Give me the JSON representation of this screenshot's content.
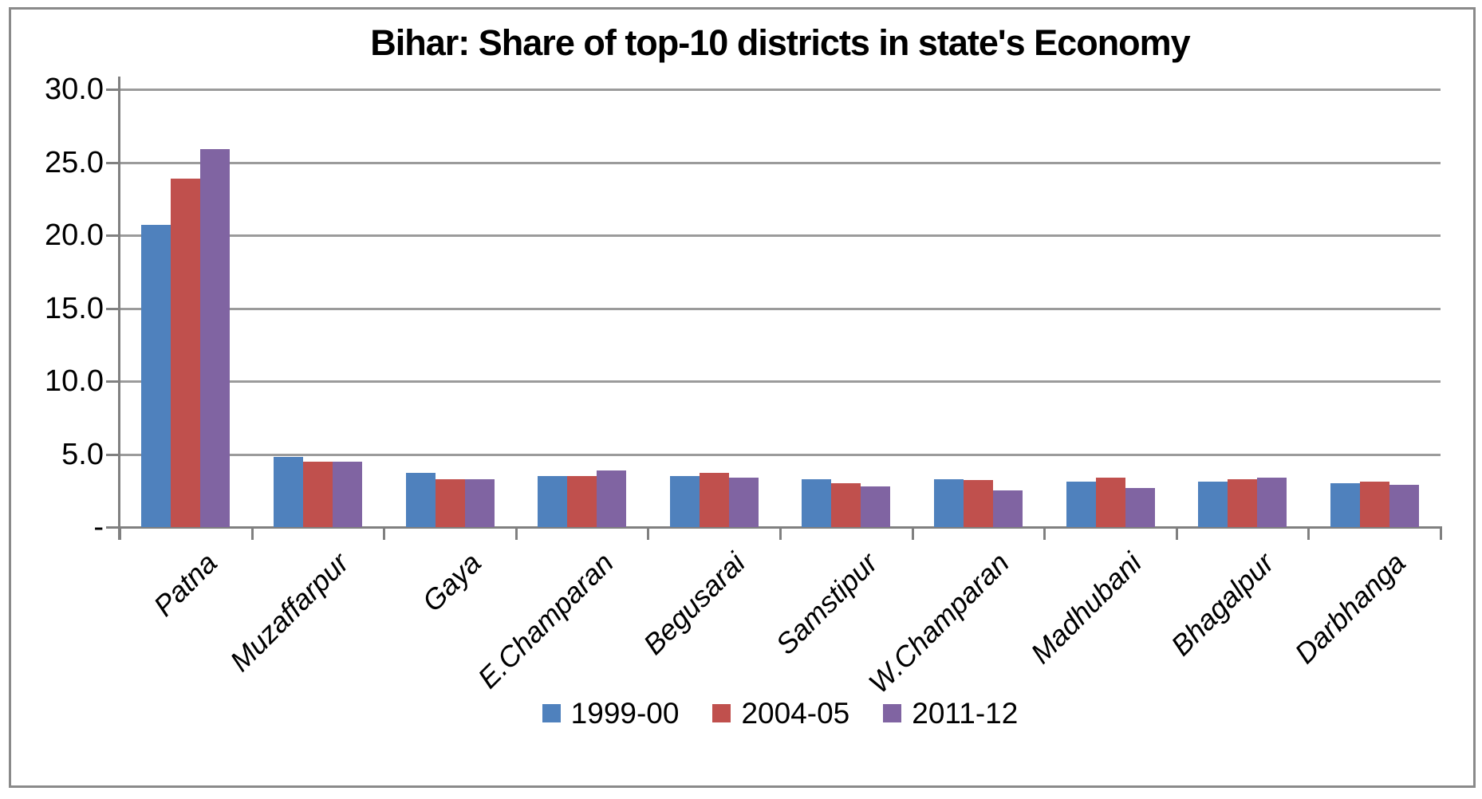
{
  "chart_data": {
    "type": "bar",
    "title": "Bihar: Share of top-10 districts in state's Economy",
    "categories": [
      "Patna",
      "Muzaffarpur",
      "Gaya",
      "E.Champaran",
      "Begusarai",
      "Samstipur",
      "W.Champaran",
      "Madhubani",
      "Bhagalpur",
      "Darbhanga"
    ],
    "series": [
      {
        "name": "1999-00",
        "color": "#4F81BD",
        "values": [
          20.7,
          4.8,
          3.7,
          3.5,
          3.5,
          3.3,
          3.3,
          3.1,
          3.1,
          3.0
        ]
      },
      {
        "name": "2004-05",
        "color": "#C0504D",
        "values": [
          23.9,
          4.5,
          3.3,
          3.5,
          3.7,
          3.0,
          3.2,
          3.4,
          3.3,
          3.1
        ]
      },
      {
        "name": "2011-12",
        "color": "#8064A2",
        "values": [
          25.9,
          4.5,
          3.3,
          3.9,
          3.4,
          2.8,
          2.5,
          2.7,
          3.4,
          2.9
        ]
      }
    ],
    "xlabel": "",
    "ylabel": "",
    "ylim": [
      0,
      30
    ],
    "ytick_step": 5,
    "ytick_labels": [
      "-",
      "5.0",
      "10.0",
      "15.0",
      "20.0",
      "25.0",
      "30.0"
    ],
    "grid": "horizontal-only",
    "legend_position": "bottom-center",
    "bar_labels_style": "italic, rotated 45 degrees"
  },
  "colors": {
    "background": "#FFFFFF",
    "frame_border": "#8A8A8A",
    "gridline": "#9B9B9B",
    "axis": "#808080",
    "title_text": "#000000",
    "label_text": "#000000"
  }
}
